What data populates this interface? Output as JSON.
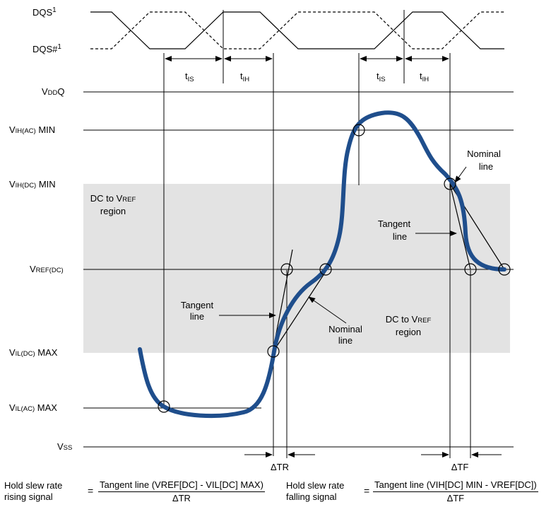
{
  "signals": {
    "dqs": "DQS",
    "dqs_sup": "1",
    "dqs_n": "DQS#",
    "dqs_n_sup": "1"
  },
  "timing": {
    "tis_main": "t",
    "tis_sub": "IS",
    "tih_main": "t",
    "tih_sub": "IH"
  },
  "levels": {
    "vddq_v": "V",
    "vddq_sub": "DD",
    "vddq_q": "Q",
    "vih_ac_v": "V",
    "vih_ac_sub": "IH",
    "vih_ac_paren": "(AC)",
    "vih_ac_tail": " MIN",
    "vih_dc_v": "V",
    "vih_dc_sub": "IH",
    "vih_dc_paren": "(DC)",
    "vih_dc_tail": " MIN",
    "vref_v": "V",
    "vref_sub": "REF",
    "vref_paren": "(DC)",
    "vil_dc_v": "V",
    "vil_dc_sub": "IL",
    "vil_dc_paren": "(DC)",
    "vil_dc_tail": " MAX",
    "vil_ac_v": "V",
    "vil_ac_sub": "IL",
    "vil_ac_paren": "(AC)",
    "vil_ac_tail": " MAX",
    "vss_v": "V",
    "vss_sub": "SS"
  },
  "regions": {
    "top_line1_a": "DC to V",
    "top_line1_b": "REF",
    "top_line2": "region",
    "bottom_line1_a": "DC to V",
    "bottom_line1_b": "REF",
    "bottom_line2": "region"
  },
  "annotations": {
    "tangent_1": "Tangent",
    "tangent_2": "line",
    "nominal_1": "Nominal",
    "nominal_2": "line"
  },
  "deltas": {
    "tr": "ΔTR",
    "tf": "ΔTF"
  },
  "formulas": {
    "rise_label_1": "Hold slew rate",
    "rise_label_2": "rising signal",
    "rise_num": "Tangent line (VREF[DC] - VIL[DC] MAX)",
    "rise_den": "ΔTR",
    "fall_label_1": "Hold slew rate",
    "fall_label_2": "falling signal",
    "fall_num": "Tangent line (VIH[DC] MIN - VREF[DC])",
    "fall_den": "ΔTF",
    "equals": "="
  },
  "colors": {
    "signal": "#1f4e8c",
    "region": "#e3e3e3"
  }
}
